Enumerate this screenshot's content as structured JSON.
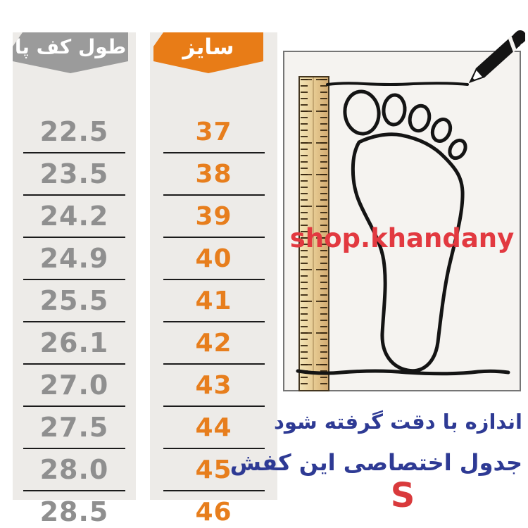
{
  "size_chart": {
    "length_column": {
      "header": "طول کف پا",
      "values": [
        "22.5",
        "23.5",
        "24.2",
        "24.9",
        "25.5",
        "26.1",
        "27.0",
        "27.5",
        "28.0",
        "28.5"
      ]
    },
    "size_column": {
      "header": "سایز",
      "values": [
        "37",
        "38",
        "39",
        "40",
        "41",
        "42",
        "43",
        "44",
        "45",
        "46"
      ]
    }
  },
  "illustration": {
    "watermark": "shop.khandany",
    "icons": [
      "ruler-icon",
      "foot-outline-icon",
      "pencil-icon",
      "measure-line"
    ]
  },
  "notes": {
    "line1": "اندازه با دقت گرفته شود",
    "line2": "جدول اختصاصی این کفش",
    "letter": "S"
  },
  "colors": {
    "accent_orange": "#e77e1d",
    "header_gray": "#9b9b9b",
    "value_gray": "#8f8f8f",
    "column_background": "#edebe8",
    "divider_black": "#1b1b1b",
    "note_navy": "#2e3a94",
    "watermark_red": "#e23940",
    "letter_red": "#d93a3c",
    "ruler_wood": "#e5c88f"
  },
  "chart_data": {
    "type": "table",
    "title": "جدول اختصاصی این کفش",
    "columns": [
      "سایز",
      "طول کف پا"
    ],
    "rows": [
      [
        "37",
        "22.5"
      ],
      [
        "38",
        "23.5"
      ],
      [
        "39",
        "24.2"
      ],
      [
        "40",
        "24.9"
      ],
      [
        "41",
        "25.5"
      ],
      [
        "42",
        "26.1"
      ],
      [
        "43",
        "27.0"
      ],
      [
        "44",
        "27.5"
      ],
      [
        "45",
        "28.0"
      ],
      [
        "46",
        "28.5"
      ]
    ]
  }
}
